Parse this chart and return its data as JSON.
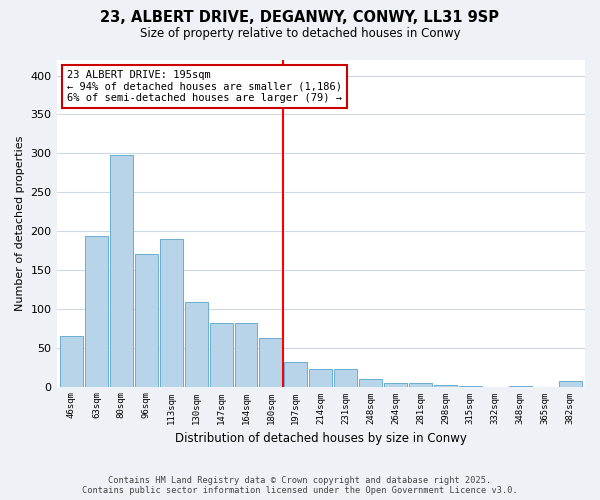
{
  "title": "23, ALBERT DRIVE, DEGANWY, CONWY, LL31 9SP",
  "subtitle": "Size of property relative to detached houses in Conwy",
  "xlabel": "Distribution of detached houses by size in Conwy",
  "ylabel": "Number of detached properties",
  "bar_labels": [
    "46sqm",
    "63sqm",
    "80sqm",
    "96sqm",
    "113sqm",
    "130sqm",
    "147sqm",
    "164sqm",
    "180sqm",
    "197sqm",
    "214sqm",
    "231sqm",
    "248sqm",
    "264sqm",
    "281sqm",
    "298sqm",
    "315sqm",
    "332sqm",
    "348sqm",
    "365sqm",
    "382sqm"
  ],
  "bar_values": [
    65,
    193,
    298,
    170,
    190,
    109,
    82,
    82,
    63,
    32,
    23,
    22,
    10,
    5,
    4,
    2,
    1,
    0,
    1,
    0,
    7
  ],
  "bar_color": "#b8d4e8",
  "bar_edge_color": "#6aadd5",
  "highlight_line_index": 9,
  "annotation_title": "23 ALBERT DRIVE: 195sqm",
  "annotation_line1": "← 94% of detached houses are smaller (1,186)",
  "annotation_line2": "6% of semi-detached houses are larger (79) →",
  "ylim": [
    0,
    420
  ],
  "yticks": [
    0,
    50,
    100,
    150,
    200,
    250,
    300,
    350,
    400
  ],
  "footer_line1": "Contains HM Land Registry data © Crown copyright and database right 2025.",
  "footer_line2": "Contains public sector information licensed under the Open Government Licence v3.0.",
  "background_color": "#eef2f7",
  "plot_bg_color": "#ffffff",
  "grid_color": "#ccd9e8"
}
